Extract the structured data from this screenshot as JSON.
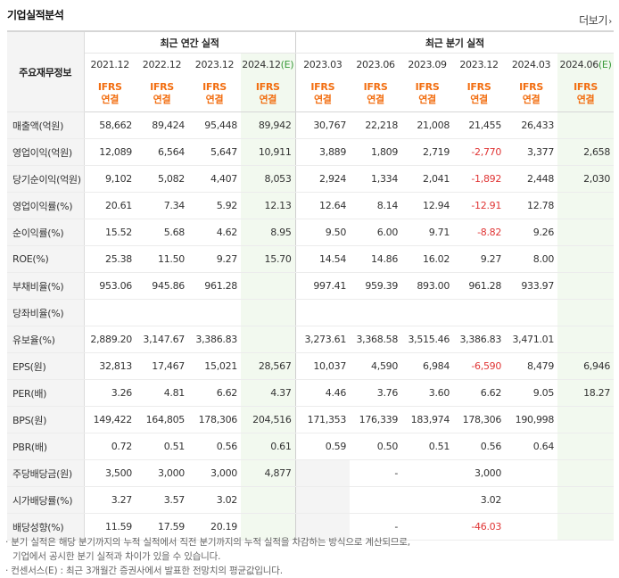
{
  "title": "기업실적분석",
  "more_label": "더보기",
  "more_arrow": "›",
  "row_header": "주요재무정보",
  "groups": {
    "annual": "최근 연간 실적",
    "quarter": "최근 분기 실적"
  },
  "periods": [
    {
      "label": "2021.12",
      "est": false
    },
    {
      "label": "2022.12",
      "est": false
    },
    {
      "label": "2023.12",
      "est": false
    },
    {
      "label": "2024.12",
      "est": true
    },
    {
      "label": "2023.03",
      "est": false
    },
    {
      "label": "2023.06",
      "est": false
    },
    {
      "label": "2023.09",
      "est": false
    },
    {
      "label": "2023.12",
      "est": false
    },
    {
      "label": "2024.03",
      "est": false
    },
    {
      "label": "2024.06",
      "est": true
    }
  ],
  "est_mark": "(E)",
  "ifrs": [
    "IFRS",
    "연결"
  ],
  "rows": [
    {
      "label": "매출액(억원)",
      "values": [
        "58,662",
        "89,424",
        "95,448",
        "89,942",
        "30,767",
        "22,218",
        "21,008",
        "21,455",
        "26,433",
        ""
      ]
    },
    {
      "label": "영업이익(억원)",
      "values": [
        "12,089",
        "6,564",
        "5,647",
        "10,911",
        "3,889",
        "1,809",
        "2,719",
        "-2,770",
        "3,377",
        "2,658"
      ]
    },
    {
      "label": "당기순이익(억원)",
      "values": [
        "9,102",
        "5,082",
        "4,407",
        "8,053",
        "2,924",
        "1,334",
        "2,041",
        "-1,892",
        "2,448",
        "2,030"
      ]
    },
    {
      "label": "영업이익률(%)",
      "values": [
        "20.61",
        "7.34",
        "5.92",
        "12.13",
        "12.64",
        "8.14",
        "12.94",
        "-12.91",
        "12.78",
        ""
      ]
    },
    {
      "label": "순이익률(%)",
      "values": [
        "15.52",
        "5.68",
        "4.62",
        "8.95",
        "9.50",
        "6.00",
        "9.71",
        "-8.82",
        "9.26",
        ""
      ]
    },
    {
      "label": "ROE(%)",
      "values": [
        "25.38",
        "11.50",
        "9.27",
        "15.70",
        "14.54",
        "14.86",
        "16.02",
        "9.27",
        "8.00",
        ""
      ]
    },
    {
      "label": "부채비율(%)",
      "values": [
        "953.06",
        "945.86",
        "961.28",
        "",
        "997.41",
        "959.39",
        "893.00",
        "961.28",
        "933.97",
        ""
      ]
    },
    {
      "label": "당좌비율(%)",
      "values": [
        "",
        "",
        "",
        "",
        "",
        "",
        "",
        "",
        "",
        ""
      ]
    },
    {
      "label": "유보율(%)",
      "values": [
        "2,889.20",
        "3,147.67",
        "3,386.83",
        "",
        "3,273.61",
        "3,368.58",
        "3,515.46",
        "3,386.83",
        "3,471.01",
        ""
      ]
    },
    {
      "label": "EPS(원)",
      "values": [
        "32,813",
        "17,467",
        "15,021",
        "28,567",
        "10,037",
        "4,590",
        "6,984",
        "-6,590",
        "8,479",
        "6,946"
      ]
    },
    {
      "label": "PER(배)",
      "values": [
        "3.26",
        "4.81",
        "6.62",
        "4.37",
        "4.46",
        "3.76",
        "3.60",
        "6.62",
        "9.05",
        "18.27"
      ]
    },
    {
      "label": "BPS(원)",
      "values": [
        "149,422",
        "164,805",
        "178,306",
        "204,516",
        "171,353",
        "176,339",
        "183,974",
        "178,306",
        "190,998",
        ""
      ]
    },
    {
      "label": "PBR(배)",
      "values": [
        "0.72",
        "0.51",
        "0.56",
        "0.61",
        "0.59",
        "0.50",
        "0.51",
        "0.56",
        "0.64",
        ""
      ]
    },
    {
      "label": "주당배당금(원)",
      "values": [
        "3,500",
        "3,000",
        "3,000",
        "4,877",
        "",
        "-",
        "",
        "3,000",
        "",
        ""
      ]
    },
    {
      "label": "시가배당률(%)",
      "values": [
        "3.27",
        "3.57",
        "3.02",
        "",
        "",
        "",
        "",
        "3.02",
        "",
        ""
      ]
    },
    {
      "label": "배당성향(%)",
      "values": [
        "11.59",
        "17.59",
        "20.19",
        "",
        "",
        "-",
        "",
        "-46.03",
        "",
        ""
      ]
    }
  ],
  "notes": [
    "· 분기 실적은 해당 분기까지의 누적 실적에서 직전 분기까지의 누적 실적을 차감하는 방식으로 계산되므로,",
    "기업에서 공시한 분기 실적과 차이가 있을 수 있습니다.",
    "· 컨센서스(E) : 최근 3개월간 증권사에서 발표한 전망치의 평균값입니다."
  ]
}
